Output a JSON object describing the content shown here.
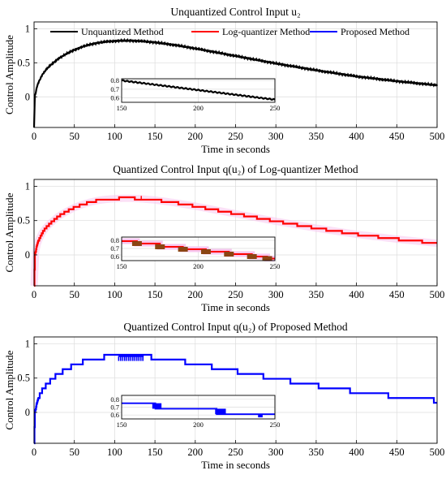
{
  "chart_data": [
    {
      "type": "line",
      "title": "Unquantized Control Input u₂",
      "xlabel": "Time in seconds",
      "ylabel": "Control Amplitude",
      "xlim": [
        0,
        500
      ],
      "ylim": [
        -0.45,
        1.1
      ],
      "xticks": [
        0,
        50,
        100,
        150,
        200,
        250,
        300,
        350,
        400,
        450,
        500
      ],
      "yticks": [
        0,
        0.5,
        1
      ],
      "grid": true,
      "legend": [
        "Unquantized Method",
        "Log-quantizer Method",
        "Proposed Method"
      ],
      "legend_colors": [
        "#000000",
        "#ff0000",
        "#0000ff"
      ],
      "legend_placement": "top",
      "series": [
        {
          "name": "Unquantized Method",
          "color": "#000000",
          "x": [
            0,
            1,
            2,
            3,
            5,
            8,
            10,
            15,
            20,
            30,
            40,
            50,
            60,
            70,
            80,
            90,
            100,
            110,
            120,
            130,
            140,
            150,
            175,
            200,
            225,
            250,
            275,
            300,
            350,
            400,
            450,
            500
          ],
          "y": [
            -0.45,
            0.02,
            0.05,
            0.12,
            0.2,
            0.27,
            0.32,
            0.4,
            0.46,
            0.56,
            0.63,
            0.69,
            0.735,
            0.77,
            0.795,
            0.81,
            0.82,
            0.825,
            0.825,
            0.82,
            0.81,
            0.8,
            0.76,
            0.71,
            0.655,
            0.6,
            0.545,
            0.49,
            0.39,
            0.3,
            0.23,
            0.17
          ]
        }
      ],
      "inset": {
        "xlim": [
          150,
          250
        ],
        "ylim": [
          0.55,
          0.82
        ],
        "xticks": [
          150,
          200,
          250
        ],
        "yticks": [
          0.6,
          0.7,
          0.8
        ],
        "ytick_labels": [
          "0.6",
          "0.7",
          "0.8"
        ]
      }
    },
    {
      "type": "line",
      "title": "Quantized Control Input q(u₂) of Log-quantizer Method",
      "xlabel": "Time in seconds",
      "ylabel": "Control Amplitude",
      "xlim": [
        0,
        500
      ],
      "ylim": [
        -0.45,
        1.1
      ],
      "xticks": [
        0,
        50,
        100,
        150,
        200,
        250,
        300,
        350,
        400,
        450,
        500
      ],
      "yticks": [
        0,
        0.5,
        1
      ],
      "grid": true,
      "series": [
        {
          "name": "Log-quantizer Method",
          "color": "#ff0000",
          "x": [
            0,
            1,
            2,
            3,
            5,
            8,
            10,
            15,
            20,
            30,
            40,
            50,
            60,
            70,
            80,
            90,
            100,
            110,
            120,
            130,
            140,
            150,
            175,
            200,
            225,
            250,
            275,
            300,
            350,
            400,
            450,
            500
          ],
          "y": [
            -0.45,
            0.02,
            0.05,
            0.12,
            0.2,
            0.27,
            0.32,
            0.4,
            0.46,
            0.56,
            0.63,
            0.69,
            0.735,
            0.77,
            0.795,
            0.81,
            0.82,
            0.825,
            0.825,
            0.82,
            0.81,
            0.8,
            0.76,
            0.71,
            0.655,
            0.6,
            0.545,
            0.49,
            0.39,
            0.3,
            0.23,
            0.17
          ]
        }
      ],
      "inset": {
        "xlim": [
          150,
          250
        ],
        "ylim": [
          0.55,
          0.84
        ],
        "xticks": [
          150,
          200,
          250
        ],
        "yticks": [
          0.6,
          0.7,
          0.8
        ],
        "ytick_labels": [
          "0.6",
          "0.7",
          "0.8"
        ]
      }
    },
    {
      "type": "line",
      "title": "Quantized Control Input q(u₂) of Proposed Method",
      "xlabel": "Time in seconds",
      "ylabel": "Control Amplitude",
      "xlim": [
        0,
        500
      ],
      "ylim": [
        -0.45,
        1.1
      ],
      "xticks": [
        0,
        50,
        100,
        150,
        200,
        250,
        300,
        350,
        400,
        450,
        500
      ],
      "yticks": [
        0,
        0.5,
        1
      ],
      "grid": true,
      "series": [
        {
          "name": "Proposed Method",
          "color": "#0000ff",
          "x": [
            0,
            1,
            2,
            3,
            5,
            8,
            10,
            15,
            20,
            30,
            40,
            50,
            60,
            70,
            80,
            90,
            100,
            110,
            120,
            130,
            140,
            150,
            175,
            200,
            225,
            250,
            275,
            300,
            350,
            400,
            450,
            500
          ],
          "y": [
            -0.45,
            0.02,
            0.05,
            0.12,
            0.2,
            0.27,
            0.32,
            0.4,
            0.46,
            0.56,
            0.63,
            0.69,
            0.735,
            0.77,
            0.795,
            0.81,
            0.82,
            0.825,
            0.825,
            0.82,
            0.81,
            0.8,
            0.76,
            0.71,
            0.655,
            0.6,
            0.545,
            0.49,
            0.39,
            0.3,
            0.23,
            0.17
          ]
        }
      ],
      "inset": {
        "xlim": [
          150,
          250
        ],
        "ylim": [
          0.55,
          0.85
        ],
        "xticks": [
          150,
          200,
          250
        ],
        "yticks": [
          0.6,
          0.7,
          0.8
        ],
        "ytick_labels": [
          "0.6",
          "0.7",
          "0.8"
        ]
      }
    }
  ]
}
